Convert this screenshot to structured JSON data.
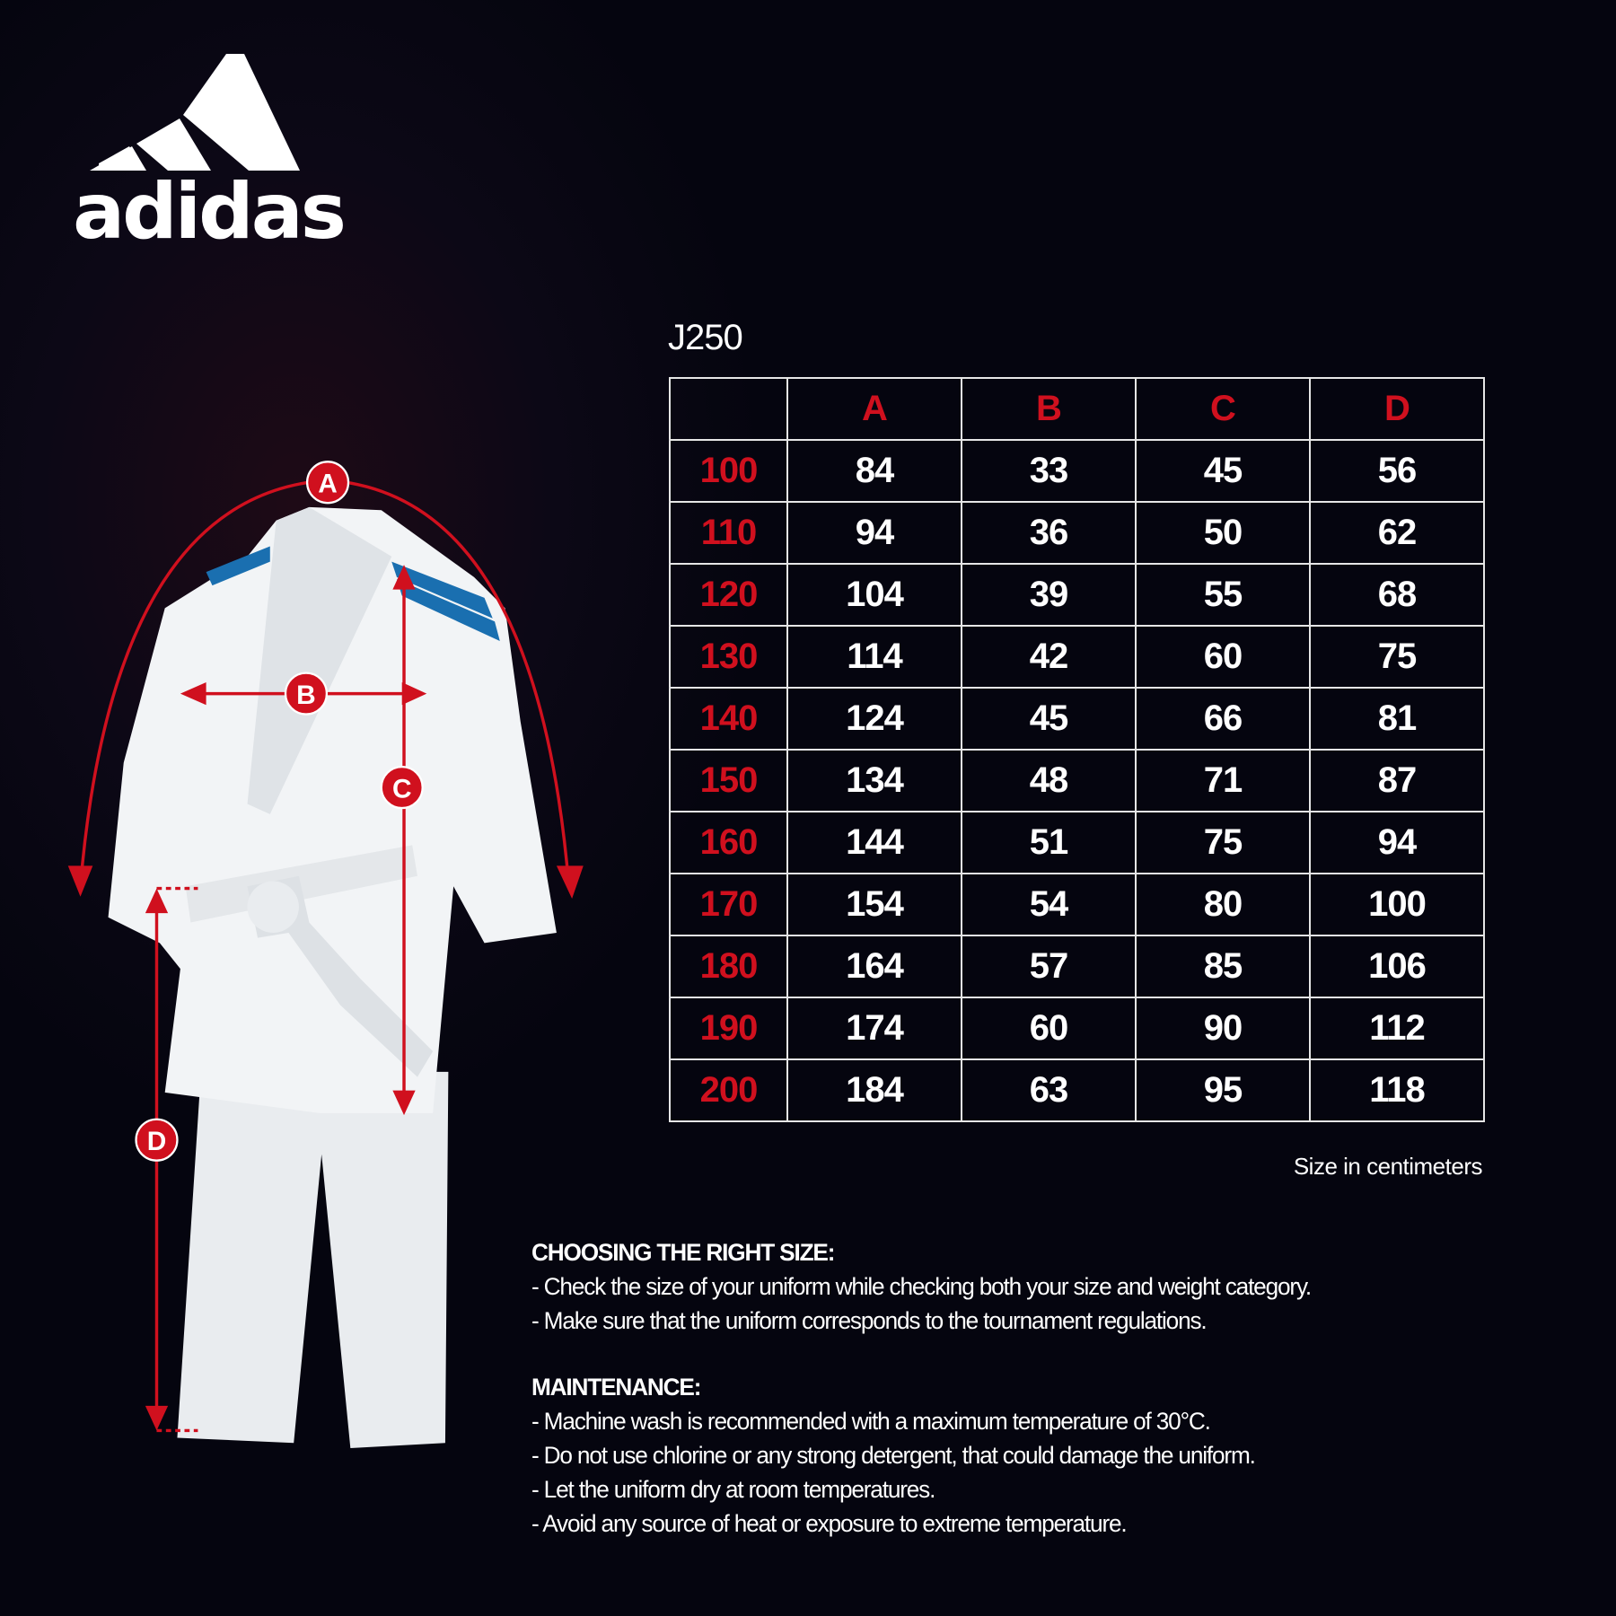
{
  "brand": {
    "name": "adidas"
  },
  "product": {
    "title": "J250"
  },
  "colors": {
    "accent": "#d0101e",
    "background": "#05050f",
    "text": "#ffffff",
    "stripes": "#1a6fb0"
  },
  "diagram": {
    "labels": [
      "A",
      "B",
      "C",
      "D"
    ]
  },
  "size_table": {
    "columns": [
      "",
      "A",
      "B",
      "C",
      "D"
    ],
    "rows": [
      [
        "100",
        "84",
        "33",
        "45",
        "56"
      ],
      [
        "110",
        "94",
        "36",
        "50",
        "62"
      ],
      [
        "120",
        "104",
        "39",
        "55",
        "68"
      ],
      [
        "130",
        "114",
        "42",
        "60",
        "75"
      ],
      [
        "140",
        "124",
        "45",
        "66",
        "81"
      ],
      [
        "150",
        "134",
        "48",
        "71",
        "87"
      ],
      [
        "160",
        "144",
        "51",
        "75",
        "94"
      ],
      [
        "170",
        "154",
        "54",
        "80",
        "100"
      ],
      [
        "180",
        "164",
        "57",
        "85",
        "106"
      ],
      [
        "190",
        "174",
        "60",
        "90",
        "112"
      ],
      [
        "200",
        "184",
        "63",
        "95",
        "118"
      ]
    ],
    "note": "Size in centimeters"
  },
  "info": {
    "choosing_heading": "CHOOSING THE RIGHT SIZE:",
    "choosing": [
      "- Check the size of your uniform while checking both your size and weight category.",
      "- Make sure that the uniform corresponds to the tournament regulations."
    ],
    "maintenance_heading": "MAINTENANCE:",
    "maintenance": [
      "- Machine wash is recommended with a maximum temperature of 30°C.",
      "- Do not use chlorine or any strong detergent, that could damage the uniform.",
      "- Let the uniform dry at room temperatures.",
      "- Avoid any source of heat or exposure to extreme temperature."
    ]
  }
}
